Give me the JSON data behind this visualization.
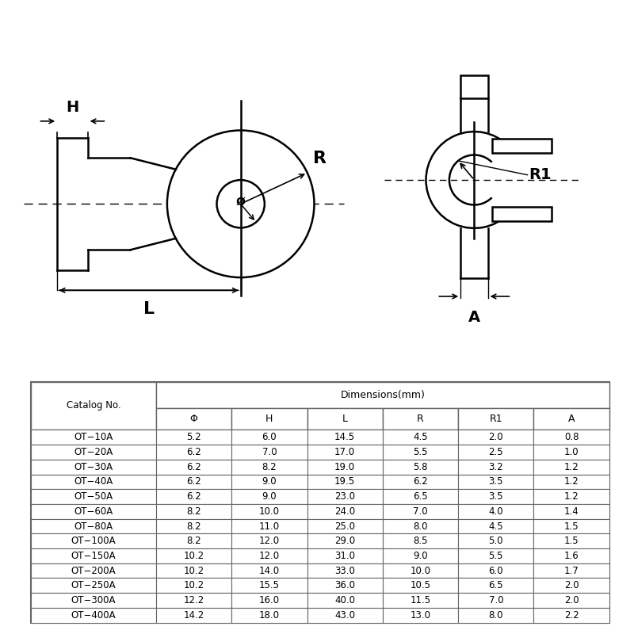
{
  "bg_color": "#ffffff",
  "table_border_color": "#666666",
  "catalog_col": "Catalog No.",
  "dim_header": "Dimensions(mm)",
  "col_headers": [
    "Φ",
    "H",
    "L",
    "R",
    "R1",
    "A"
  ],
  "rows": [
    [
      "OT−10A",
      "5.2",
      "6.0",
      "14.5",
      "4.5",
      "2.0",
      "0.8"
    ],
    [
      "OT−20A",
      "6.2",
      "7.0",
      "17.0",
      "5.5",
      "2.5",
      "1.0"
    ],
    [
      "OT−30A",
      "6.2",
      "8.2",
      "19.0",
      "5.8",
      "3.2",
      "1.2"
    ],
    [
      "OT−40A",
      "6.2",
      "9.0",
      "19.5",
      "6.2",
      "3.5",
      "1.2"
    ],
    [
      "OT−50A",
      "6.2",
      "9.0",
      "23.0",
      "6.5",
      "3.5",
      "1.2"
    ],
    [
      "OT−60A",
      "8.2",
      "10.0",
      "24.0",
      "7.0",
      "4.0",
      "1.4"
    ],
    [
      "OT−80A",
      "8.2",
      "11.0",
      "25.0",
      "8.0",
      "4.5",
      "1.5"
    ],
    [
      "OT−100A",
      "8.2",
      "12.0",
      "29.0",
      "8.5",
      "5.0",
      "1.5"
    ],
    [
      "OT−150A",
      "10.2",
      "12.0",
      "31.0",
      "9.0",
      "5.5",
      "1.6"
    ],
    [
      "OT−200A",
      "10.2",
      "14.0",
      "33.0",
      "10.0",
      "6.0",
      "1.7"
    ],
    [
      "OT−250A",
      "10.2",
      "15.5",
      "36.0",
      "10.5",
      "6.5",
      "2.0"
    ],
    [
      "OT−300A",
      "12.2",
      "16.0",
      "40.0",
      "11.5",
      "7.0",
      "2.0"
    ],
    [
      "OT−400A",
      "14.2",
      "18.0",
      "43.0",
      "13.0",
      "8.0",
      "2.2"
    ]
  ],
  "line_color": "#000000",
  "label_R": "R",
  "label_H": "H",
  "label_L": "L",
  "label_phi": "Ø",
  "label_R1": "R1",
  "label_A": "A"
}
